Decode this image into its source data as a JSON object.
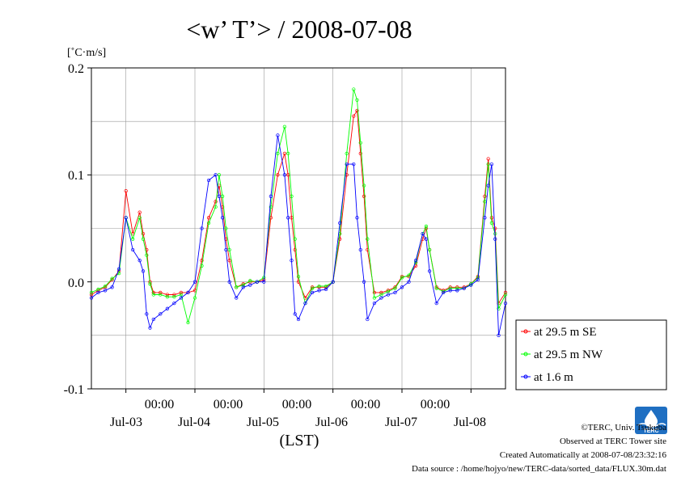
{
  "chart_data": {
    "type": "line",
    "title": "<w’ T’> / 2008-07-08",
    "ylabel": "[˚C·m/s]",
    "xlabel": "(LST)",
    "ylim": [
      -0.1,
      0.2
    ],
    "y_ticks": [
      "0.2",
      "0.1",
      "0.0",
      "-0.1"
    ],
    "x_ticks": [
      {
        "time": "00:00",
        "date": "Jul-03"
      },
      {
        "time": "00:00",
        "date": "Jul-04"
      },
      {
        "time": "00:00",
        "date": "Jul-05"
      },
      {
        "time": "00:00",
        "date": "Jul-06"
      },
      {
        "time": "00:00",
        "date": "Jul-07"
      },
      {
        "time": "00:00",
        "date": "Jul-08"
      }
    ],
    "x_unit": "days since 2008-07-02 00:00 LST",
    "xlim": [
      -0.5,
      5.5
    ],
    "grid": true,
    "legend_position": "right",
    "series": [
      {
        "name": "at 29.5 m SE",
        "color": "#ff0000",
        "x": [
          -0.5,
          -0.4,
          -0.3,
          -0.2,
          -0.1,
          0.0,
          0.1,
          0.2,
          0.25,
          0.3,
          0.35,
          0.4,
          0.5,
          0.6,
          0.7,
          0.8,
          0.9,
          1.0,
          1.1,
          1.2,
          1.3,
          1.35,
          1.4,
          1.45,
          1.5,
          1.6,
          1.7,
          1.8,
          1.9,
          2.0,
          2.1,
          2.2,
          2.3,
          2.35,
          2.4,
          2.45,
          2.5,
          2.6,
          2.7,
          2.8,
          2.9,
          3.0,
          3.1,
          3.2,
          3.3,
          3.35,
          3.4,
          3.45,
          3.5,
          3.6,
          3.7,
          3.8,
          3.9,
          4.0,
          4.1,
          4.2,
          4.3,
          4.35,
          4.4,
          4.5,
          4.6,
          4.7,
          4.8,
          4.9,
          5.0,
          5.1,
          5.2,
          5.25,
          5.3,
          5.35,
          5.4,
          5.5
        ],
        "y": [
          -0.012,
          -0.008,
          -0.005,
          0.002,
          0.01,
          0.085,
          0.045,
          0.065,
          0.045,
          0.03,
          0.0,
          -0.01,
          -0.01,
          -0.012,
          -0.012,
          -0.01,
          -0.01,
          -0.008,
          0.02,
          0.06,
          0.075,
          0.09,
          0.07,
          0.04,
          0.02,
          -0.005,
          -0.002,
          0.0,
          0.0,
          0.002,
          0.06,
          0.1,
          0.12,
          0.1,
          0.06,
          0.03,
          0.0,
          -0.015,
          -0.005,
          -0.005,
          -0.005,
          0.0,
          0.04,
          0.1,
          0.155,
          0.16,
          0.12,
          0.08,
          0.03,
          -0.01,
          -0.01,
          -0.008,
          -0.005,
          0.005,
          0.005,
          0.015,
          0.04,
          0.05,
          0.03,
          -0.005,
          -0.008,
          -0.005,
          -0.005,
          -0.005,
          -0.002,
          0.005,
          0.08,
          0.115,
          0.06,
          0.05,
          -0.02,
          -0.01
        ]
      },
      {
        "name": "at 29.5 m NW",
        "color": "#00ff00",
        "x": [
          -0.5,
          -0.4,
          -0.3,
          -0.2,
          -0.1,
          0.0,
          0.1,
          0.2,
          0.25,
          0.3,
          0.35,
          0.4,
          0.5,
          0.6,
          0.7,
          0.8,
          0.9,
          1.0,
          1.1,
          1.2,
          1.3,
          1.35,
          1.4,
          1.45,
          1.5,
          1.6,
          1.7,
          1.8,
          1.9,
          2.0,
          2.1,
          2.2,
          2.3,
          2.35,
          2.4,
          2.45,
          2.5,
          2.6,
          2.7,
          2.8,
          2.9,
          3.0,
          3.1,
          3.2,
          3.3,
          3.35,
          3.4,
          3.45,
          3.5,
          3.6,
          3.7,
          3.8,
          3.9,
          4.0,
          4.1,
          4.2,
          4.3,
          4.35,
          4.4,
          4.5,
          4.6,
          4.7,
          4.8,
          4.9,
          5.0,
          5.1,
          5.2,
          5.25,
          5.3,
          5.35,
          5.4,
          5.5
        ],
        "y": [
          -0.01,
          -0.007,
          -0.004,
          0.003,
          0.008,
          0.06,
          0.04,
          0.06,
          0.04,
          0.025,
          -0.002,
          -0.012,
          -0.012,
          -0.014,
          -0.014,
          -0.012,
          -0.038,
          -0.015,
          0.015,
          0.055,
          0.07,
          0.1,
          0.08,
          0.05,
          0.03,
          -0.005,
          -0.003,
          0.001,
          0.0,
          0.004,
          0.07,
          0.12,
          0.145,
          0.12,
          0.08,
          0.04,
          0.005,
          -0.02,
          -0.006,
          -0.004,
          -0.004,
          0.0,
          0.045,
          0.12,
          0.18,
          0.17,
          0.13,
          0.09,
          0.04,
          -0.015,
          -0.012,
          -0.009,
          -0.006,
          0.004,
          0.006,
          0.018,
          0.045,
          0.052,
          0.03,
          -0.006,
          -0.009,
          -0.006,
          -0.006,
          -0.006,
          -0.002,
          0.004,
          0.075,
          0.11,
          0.055,
          0.045,
          -0.025,
          -0.012
        ]
      },
      {
        "name": "at 1.6 m",
        "color": "#0000ff",
        "x": [
          -0.5,
          -0.4,
          -0.3,
          -0.2,
          -0.1,
          0.0,
          0.1,
          0.2,
          0.25,
          0.3,
          0.35,
          0.4,
          0.5,
          0.6,
          0.7,
          0.8,
          0.9,
          1.0,
          1.1,
          1.2,
          1.3,
          1.35,
          1.4,
          1.45,
          1.5,
          1.6,
          1.7,
          1.8,
          1.9,
          2.0,
          2.1,
          2.2,
          2.3,
          2.35,
          2.4,
          2.45,
          2.5,
          2.6,
          2.7,
          2.8,
          2.9,
          3.0,
          3.1,
          3.2,
          3.3,
          3.35,
          3.4,
          3.45,
          3.5,
          3.6,
          3.7,
          3.8,
          3.9,
          4.0,
          4.1,
          4.2,
          4.3,
          4.35,
          4.4,
          4.5,
          4.6,
          4.7,
          4.8,
          4.9,
          5.0,
          5.1,
          5.2,
          5.25,
          5.3,
          5.35,
          5.4,
          5.5
        ],
        "y": [
          -0.015,
          -0.01,
          -0.008,
          -0.005,
          0.012,
          0.06,
          0.03,
          0.02,
          0.01,
          -0.03,
          -0.043,
          -0.035,
          -0.03,
          -0.025,
          -0.02,
          -0.015,
          -0.01,
          0.0,
          0.05,
          0.095,
          0.1,
          0.08,
          0.06,
          0.03,
          0.0,
          -0.015,
          -0.005,
          -0.003,
          0.0,
          0.0,
          0.08,
          0.137,
          0.1,
          0.06,
          0.02,
          -0.03,
          -0.035,
          -0.02,
          -0.01,
          -0.008,
          -0.007,
          0.0,
          0.055,
          0.11,
          0.11,
          0.06,
          0.03,
          0.0,
          -0.035,
          -0.02,
          -0.015,
          -0.012,
          -0.01,
          -0.005,
          0.0,
          0.02,
          0.045,
          0.04,
          0.01,
          -0.02,
          -0.01,
          -0.008,
          -0.008,
          -0.006,
          -0.003,
          0.002,
          0.06,
          0.09,
          0.11,
          0.04,
          -0.05,
          -0.02
        ]
      }
    ]
  },
  "footer": {
    "copyright": "©TERC, Univ. Tsukuba",
    "observed": "Observed at TERC Tower site",
    "created": "Created Automatically at 2008-07-08/23:32:16",
    "source": "Data source : /home/hojyo/new/TERC-data/sorted_data/FLUX.30m.dat",
    "logo_text": "TERC"
  }
}
